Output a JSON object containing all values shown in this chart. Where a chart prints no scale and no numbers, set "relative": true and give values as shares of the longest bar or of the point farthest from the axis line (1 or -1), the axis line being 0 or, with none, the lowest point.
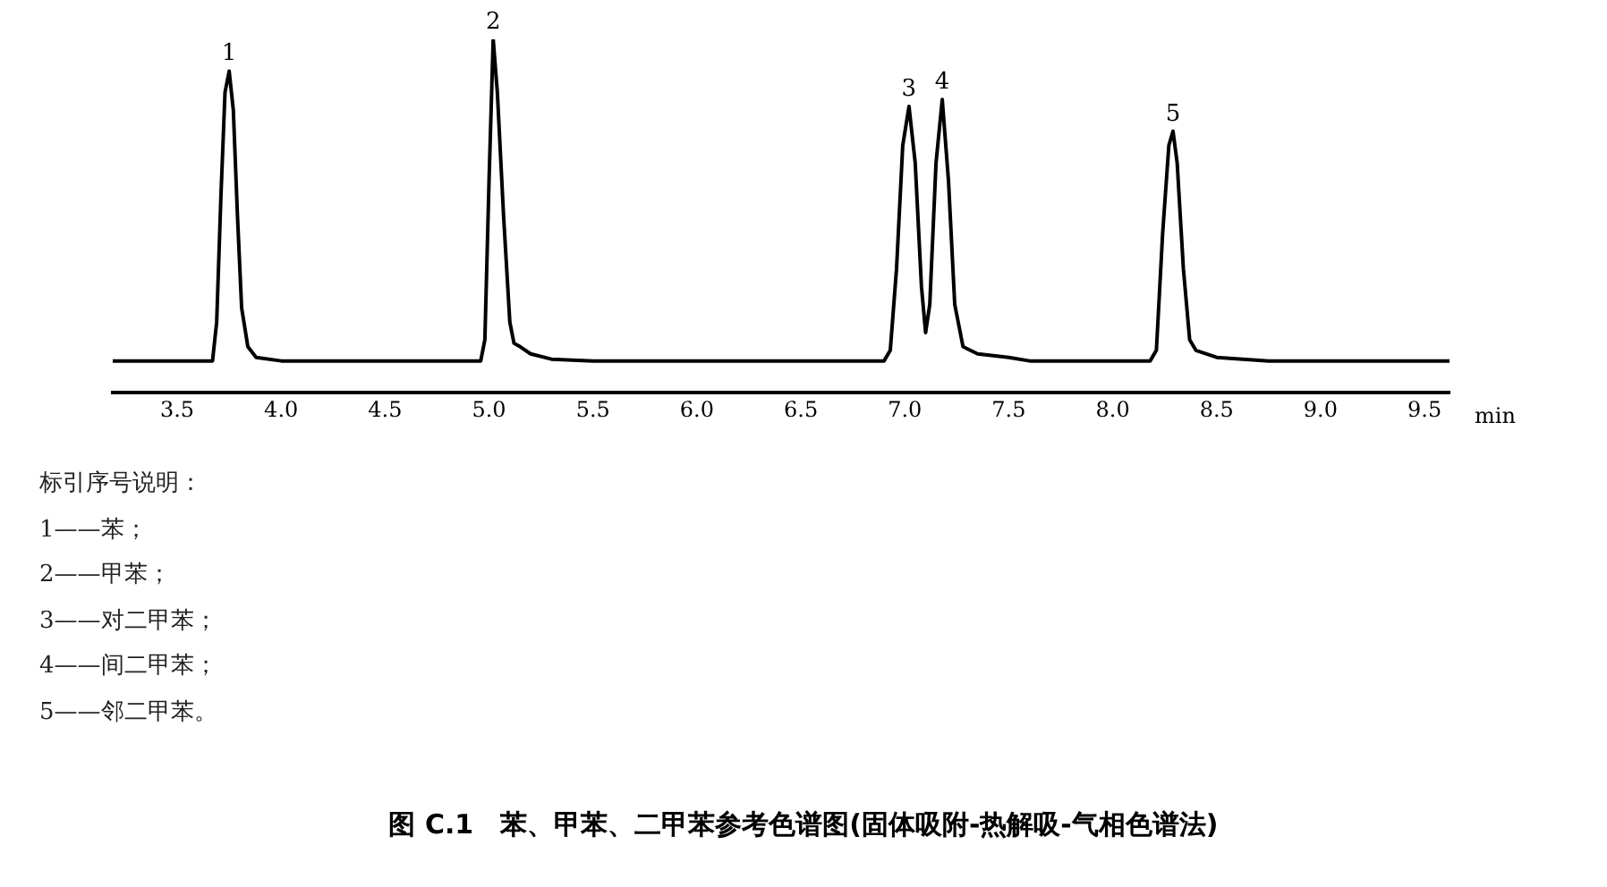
{
  "chart_data": {
    "type": "line",
    "relative": true,
    "title": "图 C.1　苯、甲苯、二甲苯参考色谱图(固体吸附-热解吸-气相色谱法)",
    "xlabel": "min",
    "xlim": [
      3.19,
      9.62
    ],
    "xticks": [
      3.5,
      {
        "value": 4,
        "label": "4.0"
      },
      4.5,
      {
        "value": 5,
        "label": "5.0"
      },
      5.5,
      {
        "value": 6,
        "label": "6.0"
      },
      6.5,
      {
        "value": 7,
        "label": "7.0"
      },
      7.5,
      {
        "value": 8,
        "label": "8.0"
      },
      8.5,
      {
        "value": 9,
        "label": "9.0"
      },
      9.5
    ],
    "grid": false,
    "legend": false,
    "marker": "none",
    "line_style": "solid",
    "series": [
      {
        "color": "#000000",
        "x": [
          3.19,
          3.6,
          3.67,
          3.69,
          3.71,
          3.73,
          3.75,
          3.77,
          3.79,
          3.81,
          3.84,
          3.88,
          4.0,
          4.96,
          4.98,
          5.0,
          5.02,
          5.04,
          5.07,
          5.1,
          5.12,
          5.15,
          5.2,
          5.3,
          5.5,
          6.9,
          6.93,
          6.96,
          6.99,
          7.02,
          7.05,
          7.08,
          7.1,
          7.12,
          7.15,
          7.18,
          7.21,
          7.24,
          7.28,
          7.35,
          7.5,
          7.6,
          8.18,
          8.21,
          8.24,
          8.27,
          8.29,
          8.31,
          8.34,
          8.37,
          8.4,
          8.5,
          8.75,
          9.62
        ],
        "values": [
          0.09,
          0.09,
          0.09,
          0.2,
          0.55,
          0.85,
          0.91,
          0.8,
          0.5,
          0.24,
          0.13,
          0.1,
          0.09,
          0.09,
          0.15,
          0.6,
          1,
          0.85,
          0.5,
          0.2,
          0.14,
          0.13,
          0.11,
          0.095,
          0.09,
          0.09,
          0.12,
          0.35,
          0.7,
          0.81,
          0.65,
          0.3,
          0.17,
          0.25,
          0.65,
          0.83,
          0.6,
          0.25,
          0.13,
          0.11,
          0.1,
          0.09,
          0.09,
          0.12,
          0.45,
          0.7,
          0.74,
          0.65,
          0.35,
          0.15,
          0.12,
          0.1,
          0.09,
          0.09
        ]
      }
    ],
    "annotations": [
      {
        "text": "1",
        "x": 3.75,
        "y": 0.91
      },
      {
        "text": "2",
        "x": 5.02,
        "y": 1
      },
      {
        "text": "3",
        "x": 7.02,
        "y": 0.81
      },
      {
        "text": "4",
        "x": 7.18,
        "y": 0.83
      },
      {
        "text": "5",
        "x": 8.29,
        "y": 0.74
      },
      "标引序号说明：",
      "1——苯；",
      "2——甲苯；",
      "3——对二甲苯；",
      "4——间二甲苯；",
      "5——邻二甲苯。"
    ]
  }
}
